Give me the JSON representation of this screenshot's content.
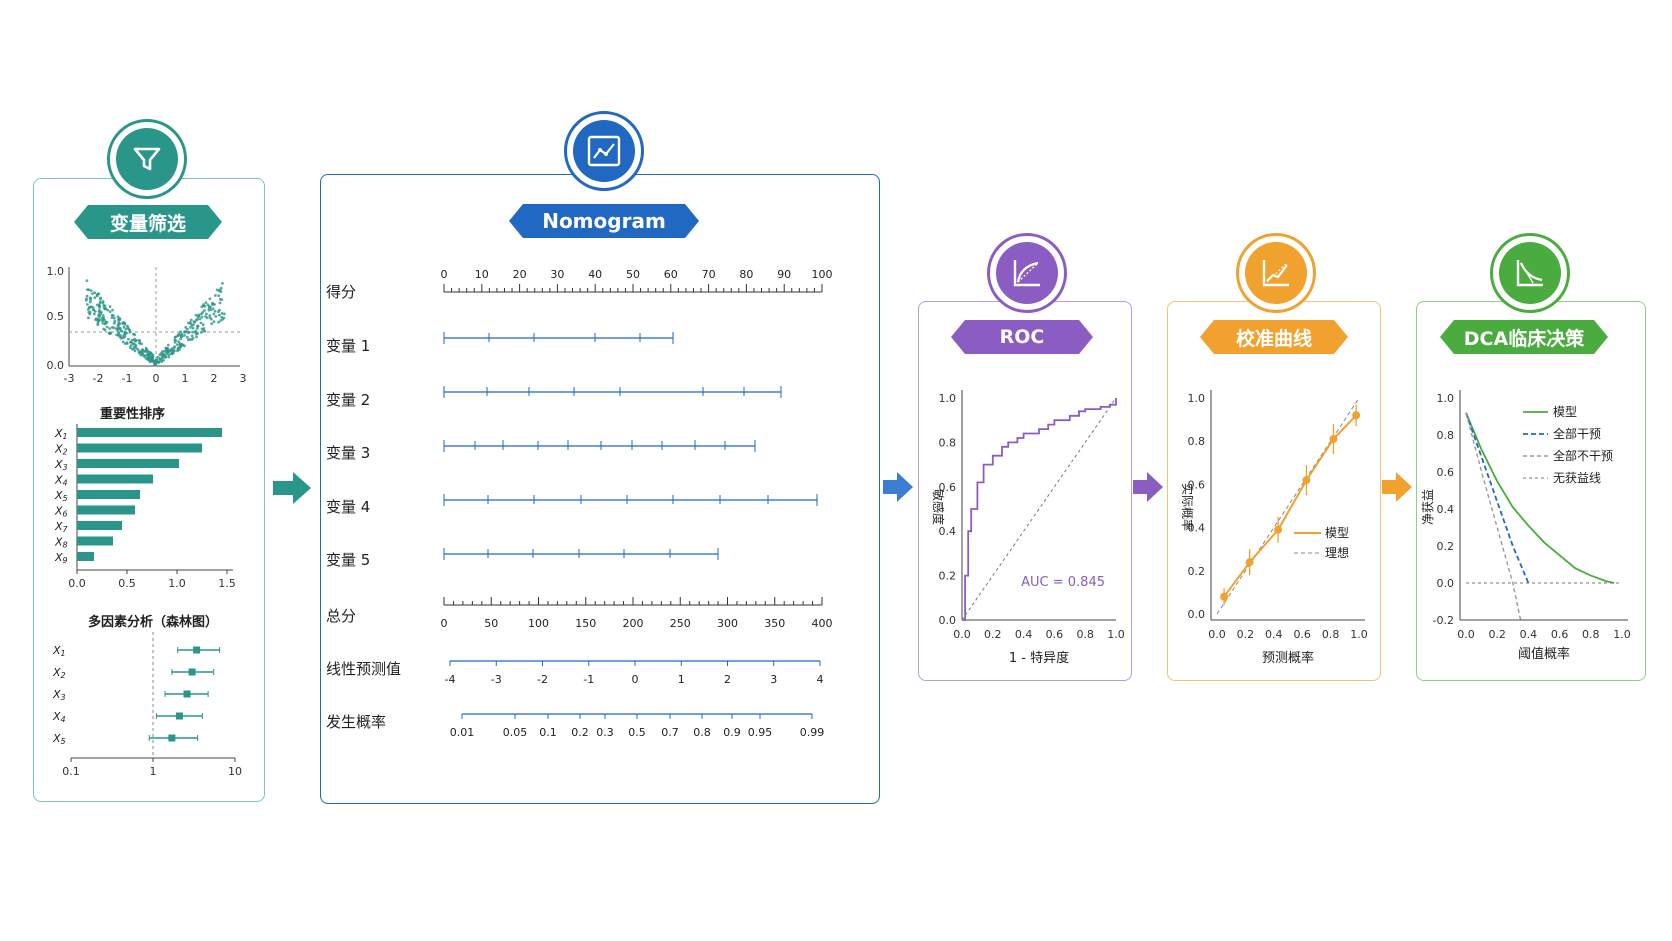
{
  "colors": {
    "teal": "#2a9689",
    "blue": "#2168c2",
    "purple": "#8b5cc1",
    "orange": "#f0a12e",
    "green": "#4aab3e"
  },
  "screening": {
    "title": "变量筛选",
    "icon": "funnel-icon",
    "volcano": {
      "y_ticks": [
        "1.0",
        "0.5",
        "0.0"
      ],
      "x_ticks": [
        "-3",
        "-2",
        "-1",
        "0",
        "1",
        "2",
        "3"
      ]
    },
    "importance": {
      "title": "重要性排序",
      "labels": [
        "X1",
        "X2",
        "X3",
        "X4",
        "X5",
        "X6",
        "X7",
        "X8",
        "X9"
      ],
      "values": [
        1.45,
        1.25,
        1.02,
        0.76,
        0.63,
        0.58,
        0.45,
        0.36,
        0.17
      ],
      "x_ticks": [
        "0.0",
        "0.5",
        "1.0",
        "1.5"
      ]
    },
    "forest": {
      "title": "多因素分析（森林图）",
      "labels": [
        "X1",
        "X2",
        "X3",
        "X4",
        "X5"
      ],
      "estimates": [
        3.4,
        3.0,
        2.6,
        2.1,
        1.7
      ],
      "lower": [
        2.0,
        1.7,
        1.4,
        1.1,
        0.9
      ],
      "upper": [
        6.5,
        5.5,
        4.7,
        4.0,
        3.5
      ],
      "x_ticks": [
        "0.1",
        "1",
        "10"
      ]
    }
  },
  "nomogram": {
    "title": "Nomogram",
    "icon": "nomogram-icon",
    "rows": [
      {
        "label": "得分",
        "ticks": [
          "0",
          "10",
          "20",
          "30",
          "40",
          "50",
          "60",
          "70",
          "80",
          "90",
          "100"
        ]
      },
      {
        "label": "变量 1"
      },
      {
        "label": "变量 2"
      },
      {
        "label": "变量 3"
      },
      {
        "label": "变量 4"
      },
      {
        "label": "变量 5"
      },
      {
        "label": "总分",
        "ticks": [
          "0",
          "50",
          "100",
          "150",
          "200",
          "250",
          "300",
          "350",
          "400"
        ]
      },
      {
        "label": "线性预测值",
        "ticks": [
          "-4",
          "-3",
          "-2",
          "-1",
          "0",
          "1",
          "2",
          "3",
          "4"
        ]
      },
      {
        "label": "发生概率",
        "ticks": [
          "0.01",
          "0.05",
          "0.1",
          "0.2",
          "0.3",
          "0.5",
          "0.7",
          "0.8",
          "0.9",
          "0.95",
          "0.99"
        ]
      }
    ]
  },
  "roc": {
    "title": "ROC",
    "icon": "roc-curve-icon",
    "xlabel": "1 - 特异度",
    "ylabel": "敏感度",
    "auc": "AUC = 0.845",
    "ticks": [
      "0.0",
      "0.2",
      "0.4",
      "0.6",
      "0.8",
      "1.0"
    ]
  },
  "calibration": {
    "title": "校准曲线",
    "icon": "calibration-icon",
    "xlabel": "预测概率",
    "ylabel": "实际概率",
    "legend": [
      "模型",
      "理想"
    ],
    "ticks": [
      "0.0",
      "0.2",
      "0.4",
      "0.6",
      "0.8",
      "1.0"
    ]
  },
  "dca": {
    "title": "DCA临床决策",
    "icon": "dca-icon",
    "xlabel": "阈值概率",
    "ylabel": "净获益",
    "legend": [
      "模型",
      "全部干预",
      "全部不干预",
      "无获益线"
    ],
    "x_ticks": [
      "0.0",
      "0.2",
      "0.4",
      "0.6",
      "0.8",
      "1.0"
    ],
    "y_ticks": [
      "1.0",
      "0.8",
      "0.6",
      "0.4",
      "0.2",
      "0.0",
      "-0.2"
    ]
  },
  "chart_data": [
    {
      "type": "bar",
      "title": "重要性排序",
      "categories": [
        "X1",
        "X2",
        "X3",
        "X4",
        "X5",
        "X6",
        "X7",
        "X8",
        "X9"
      ],
      "values": [
        1.45,
        1.25,
        1.02,
        0.76,
        0.63,
        0.58,
        0.45,
        0.36,
        0.17
      ],
      "xlim": [
        0,
        1.5
      ]
    },
    {
      "type": "scatter",
      "title": "多因素分析（森林图）",
      "categories": [
        "X1",
        "X2",
        "X3",
        "X4",
        "X5"
      ],
      "values": [
        3.4,
        3.0,
        2.6,
        2.1,
        1.7
      ],
      "xlim": [
        0.1,
        10
      ],
      "log_x": true
    },
    {
      "type": "line",
      "title": "ROC",
      "xlabel": "1 - 特异度",
      "ylabel": "敏感度",
      "x": [
        0,
        0.02,
        0.04,
        0.06,
        0.1,
        0.14,
        0.2,
        0.26,
        0.3,
        0.36,
        0.4,
        0.5,
        0.56,
        0.6,
        0.7,
        0.76,
        0.8,
        0.9,
        0.96,
        1.0
      ],
      "y": [
        0,
        0.2,
        0.4,
        0.5,
        0.62,
        0.7,
        0.74,
        0.78,
        0.8,
        0.82,
        0.84,
        0.86,
        0.88,
        0.9,
        0.92,
        0.94,
        0.95,
        0.96,
        0.97,
        1.0
      ],
      "xlim": [
        0,
        1
      ],
      "ylim": [
        0,
        1
      ]
    },
    {
      "type": "line",
      "title": "校准曲线",
      "xlabel": "预测概率",
      "ylabel": "实际概率",
      "x": [
        0.05,
        0.23,
        0.43,
        0.63,
        0.82,
        0.98
      ],
      "y": [
        0.08,
        0.24,
        0.39,
        0.62,
        0.81,
        0.92
      ],
      "xlim": [
        0,
        1
      ],
      "ylim": [
        0,
        1
      ]
    },
    {
      "type": "line",
      "title": "DCA临床决策",
      "xlabel": "阈值概率",
      "ylabel": "净获益",
      "series": [
        {
          "name": "模型",
          "x": [
            0,
            0.1,
            0.2,
            0.3,
            0.4,
            0.5,
            0.6,
            0.7,
            0.8,
            0.9,
            0.95
          ],
          "y": [
            0.92,
            0.72,
            0.55,
            0.41,
            0.31,
            0.22,
            0.15,
            0.08,
            0.04,
            0.01,
            0.0
          ]
        },
        {
          "name": "全部干预",
          "x": [
            0,
            0.1,
            0.2,
            0.3,
            0.4
          ],
          "y": [
            0.92,
            0.68,
            0.44,
            0.2,
            0.0
          ]
        },
        {
          "name": "全部不干预",
          "x": [
            0,
            0.1,
            0.2,
            0.3,
            0.35
          ],
          "y": [
            0.92,
            0.6,
            0.3,
            0.0,
            -0.2
          ]
        },
        {
          "name": "无获益线",
          "x": [
            0,
            1
          ],
          "y": [
            0,
            0
          ]
        }
      ],
      "xlim": [
        0,
        1
      ],
      "ylim": [
        -0.2,
        1
      ]
    }
  ]
}
